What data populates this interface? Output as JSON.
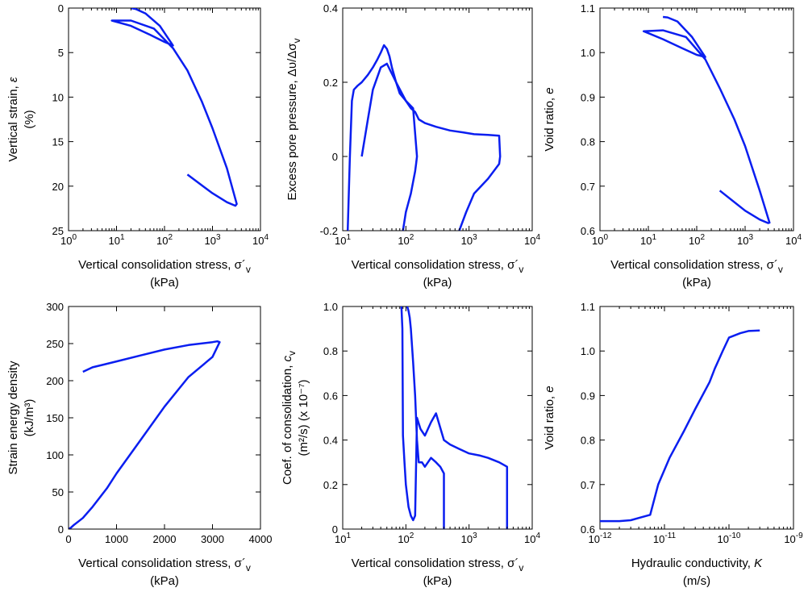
{
  "chart_data": [
    {
      "type": "line",
      "xscale": "log",
      "xlim": [
        1,
        10000
      ],
      "ylim": [
        25,
        0
      ],
      "y_inverted": true,
      "xticks": [
        1,
        10,
        100,
        1000,
        10000
      ],
      "xticklabels": [
        [
          "10",
          "0"
        ],
        [
          "10",
          "1"
        ],
        [
          "10",
          "2"
        ],
        [
          "10",
          "3"
        ],
        [
          "10",
          "4"
        ]
      ],
      "yticks": [
        0,
        5,
        10,
        15,
        20,
        25
      ],
      "yticklabels": [
        "0",
        "5",
        "10",
        "15",
        "20",
        "25"
      ],
      "xlabel": [
        "Vertical consolidation stress, σ´",
        "v",
        "(kPa)"
      ],
      "ylabel": [
        "Vertical strain, ",
        "ε",
        "(%)"
      ],
      "grid": false,
      "series": [
        {
          "color": "#0a1ef0",
          "x": [
            20,
            25,
            40,
            80,
            150,
            100,
            50,
            20,
            8,
            20,
            60,
            150,
            300,
            600,
            1000,
            2000,
            3200,
            3000,
            2000,
            1000,
            300
          ],
          "y": [
            0,
            0.1,
            0.6,
            2.0,
            4.2,
            3.8,
            3.0,
            2.0,
            1.4,
            1.4,
            2.3,
            4.5,
            7.0,
            10.5,
            13.5,
            18.0,
            22.0,
            22.2,
            21.8,
            20.8,
            18.7
          ]
        }
      ]
    },
    {
      "type": "line",
      "xscale": "log",
      "xlim": [
        10,
        10000
      ],
      "ylim": [
        -0.2,
        0.4
      ],
      "xticks": [
        10,
        100,
        1000,
        10000
      ],
      "xticklabels": [
        [
          "10",
          "1"
        ],
        [
          "10",
          "2"
        ],
        [
          "10",
          "3"
        ],
        [
          "10",
          "4"
        ]
      ],
      "yticks": [
        -0.2,
        0,
        0.2,
        0.4
      ],
      "yticklabels": [
        "-0.2",
        "0",
        "0.2",
        "0.4"
      ],
      "xlabel": [
        "Vertical consolidation stress, σ´",
        "v",
        "(kPa)"
      ],
      "ylabel": [
        "Excess pore pressure, Δυ/Δσ",
        "v",
        ""
      ],
      "grid": false,
      "series": [
        {
          "color": "#0a1ef0",
          "x": [
            12,
            13,
            14,
            15,
            17,
            20,
            25,
            30,
            35,
            40,
            45,
            50,
            55,
            60,
            70,
            80,
            100,
            120,
            140,
            150,
            160,
            200,
            300,
            500,
            800,
            1200,
            2000,
            3000,
            3100,
            3000,
            2000,
            1200,
            900,
            700
          ],
          "y": [
            -0.2,
            0.0,
            0.15,
            0.18,
            0.19,
            0.2,
            0.22,
            0.24,
            0.26,
            0.28,
            0.3,
            0.29,
            0.27,
            0.24,
            0.2,
            0.17,
            0.15,
            0.13,
            0.12,
            0.11,
            0.1,
            0.09,
            0.08,
            0.07,
            0.065,
            0.06,
            0.058,
            0.056,
            0.0,
            -0.02,
            -0.06,
            -0.1,
            -0.15,
            -0.2
          ]
        },
        {
          "color": "#0a1ef0",
          "x": [
            20,
            25,
            30,
            40,
            50,
            70,
            100,
            130,
            150,
            145,
            140,
            120,
            100,
            90
          ],
          "y": [
            0.0,
            0.1,
            0.18,
            0.24,
            0.25,
            0.2,
            0.15,
            0.13,
            0.0,
            -0.02,
            -0.04,
            -0.1,
            -0.15,
            -0.2
          ]
        }
      ]
    },
    {
      "type": "line",
      "xscale": "log",
      "xlim": [
        1,
        10000
      ],
      "ylim": [
        0.6,
        1.1
      ],
      "xticks": [
        1,
        10,
        100,
        1000,
        10000
      ],
      "xticklabels": [
        [
          "10",
          "0"
        ],
        [
          "10",
          "1"
        ],
        [
          "10",
          "2"
        ],
        [
          "10",
          "3"
        ],
        [
          "10",
          "4"
        ]
      ],
      "yticks": [
        0.6,
        0.7,
        0.8,
        0.9,
        1.0,
        1.1
      ],
      "yticklabels": [
        "0.6",
        "0.7",
        "0.8",
        "0.9",
        "1.0",
        "1.1"
      ],
      "xlabel": [
        "Vertical consolidation stress, σ´",
        "v",
        "(kPa)"
      ],
      "ylabel": [
        "Void ratio, ",
        "e",
        ""
      ],
      "grid": false,
      "series": [
        {
          "color": "#0a1ef0",
          "x": [
            20,
            25,
            40,
            80,
            150,
            100,
            50,
            20,
            8,
            20,
            60,
            150,
            300,
            600,
            1000,
            2000,
            3200,
            3000,
            2000,
            1000,
            300
          ],
          "y": [
            1.08,
            1.079,
            1.07,
            1.035,
            0.99,
            0.995,
            1.01,
            1.03,
            1.048,
            1.05,
            1.035,
            0.985,
            0.92,
            0.85,
            0.79,
            0.69,
            0.618,
            0.617,
            0.625,
            0.645,
            0.69
          ]
        }
      ]
    },
    {
      "type": "line",
      "xscale": "linear",
      "xlim": [
        0,
        4000
      ],
      "ylim": [
        0,
        300
      ],
      "xticks": [
        0,
        1000,
        2000,
        3000,
        4000
      ],
      "xticklabels": [
        [
          "0",
          ""
        ],
        [
          "1000",
          ""
        ],
        [
          "2000",
          ""
        ],
        [
          "3000",
          ""
        ],
        [
          "4000",
          ""
        ]
      ],
      "yticks": [
        0,
        50,
        100,
        150,
        200,
        250,
        300
      ],
      "yticklabels": [
        "0",
        "50",
        "100",
        "150",
        "200",
        "250",
        "300"
      ],
      "xlabel": [
        "Vertical consolidation stress, σ´",
        "v",
        "(kPa)"
      ],
      "ylabel": [
        "Strain energy density",
        "",
        "(kJ/m³)"
      ],
      "grid": false,
      "series": [
        {
          "color": "#0a1ef0",
          "x": [
            0,
            50,
            100,
            200,
            300,
            500,
            800,
            1000,
            1500,
            2000,
            2500,
            3000,
            3150,
            3100,
            3000,
            2500,
            2000,
            1500,
            1000,
            500,
            300
          ],
          "y": [
            0,
            2,
            5,
            10,
            15,
            30,
            55,
            75,
            120,
            165,
            205,
            232,
            252,
            253,
            252,
            248,
            242,
            234,
            226,
            218,
            212
          ]
        }
      ]
    },
    {
      "type": "line",
      "xscale": "log",
      "xlim": [
        10,
        10000
      ],
      "ylim": [
        0,
        1.0
      ],
      "xticks": [
        10,
        100,
        1000,
        10000
      ],
      "xticklabels": [
        [
          "10",
          "1"
        ],
        [
          "10",
          "2"
        ],
        [
          "10",
          "3"
        ],
        [
          "10",
          "4"
        ]
      ],
      "yticks": [
        0,
        0.2,
        0.4,
        0.6,
        0.8,
        1.0
      ],
      "yticklabels": [
        "0",
        "0.2",
        "0.4",
        "0.6",
        "0.8",
        "1.0"
      ],
      "xlabel": [
        "Vertical consolidation stress, σ´",
        "v",
        "(kPa)"
      ],
      "ylabel": [
        "Coef. of consolidation, ",
        "c",
        "(m²/s) (x 10⁻⁷)"
      ],
      "grid": false,
      "series": [
        {
          "color": "#0a1ef0",
          "x": [
            85,
            88,
            90,
            95,
            100,
            110,
            120,
            130,
            140,
            150,
            170,
            200,
            250,
            300,
            400,
            500,
            700,
            1000,
            1500,
            2000,
            3000,
            4000,
            4000
          ],
          "y": [
            1.0,
            0.9,
            0.42,
            0.3,
            0.2,
            0.1,
            0.06,
            0.04,
            0.06,
            0.5,
            0.45,
            0.42,
            0.48,
            0.52,
            0.4,
            0.38,
            0.36,
            0.34,
            0.33,
            0.32,
            0.3,
            0.28,
            0.0
          ]
        },
        {
          "color": "#0a1ef0",
          "x": [
            105,
            110,
            115,
            120,
            130,
            140,
            150,
            160,
            180,
            200,
            250,
            300,
            350,
            400,
            400
          ],
          "y": [
            1.0,
            0.98,
            0.95,
            0.9,
            0.75,
            0.6,
            0.4,
            0.3,
            0.3,
            0.28,
            0.32,
            0.3,
            0.28,
            0.25,
            0.0
          ]
        }
      ]
    },
    {
      "type": "line",
      "xscale": "log",
      "xlim": [
        1e-12,
        1e-09
      ],
      "ylim": [
        0.6,
        1.1
      ],
      "xticks": [
        1e-12,
        1e-11,
        1e-10,
        1e-09
      ],
      "xticklabels": [
        [
          "10",
          "-12"
        ],
        [
          "10",
          "-11"
        ],
        [
          "10",
          "-10"
        ],
        [
          "10",
          "-9"
        ]
      ],
      "yticks": [
        0.6,
        0.7,
        0.8,
        0.9,
        1.0,
        1.1
      ],
      "yticklabels": [
        "0.6",
        "0.7",
        "0.8",
        "0.9",
        "1.0",
        "1.1"
      ],
      "xlabel": [
        "Hydraulic conductivity, ",
        "K",
        "(m/s)"
      ],
      "ylabel": [
        "Void ratio, ",
        "e",
        ""
      ],
      "grid": false,
      "series": [
        {
          "color": "#0a1ef0",
          "x": [
            1e-12,
            2e-12,
            3e-12,
            4e-12,
            6e-12,
            8e-12,
            1.2e-11,
            2e-11,
            3e-11,
            5e-11,
            6e-11,
            8e-11,
            1e-10,
            1.5e-10,
            2e-10,
            3e-10
          ],
          "y": [
            0.618,
            0.618,
            0.62,
            0.625,
            0.632,
            0.7,
            0.76,
            0.82,
            0.87,
            0.93,
            0.96,
            1.0,
            1.03,
            1.04,
            1.045,
            1.046
          ]
        }
      ]
    }
  ]
}
